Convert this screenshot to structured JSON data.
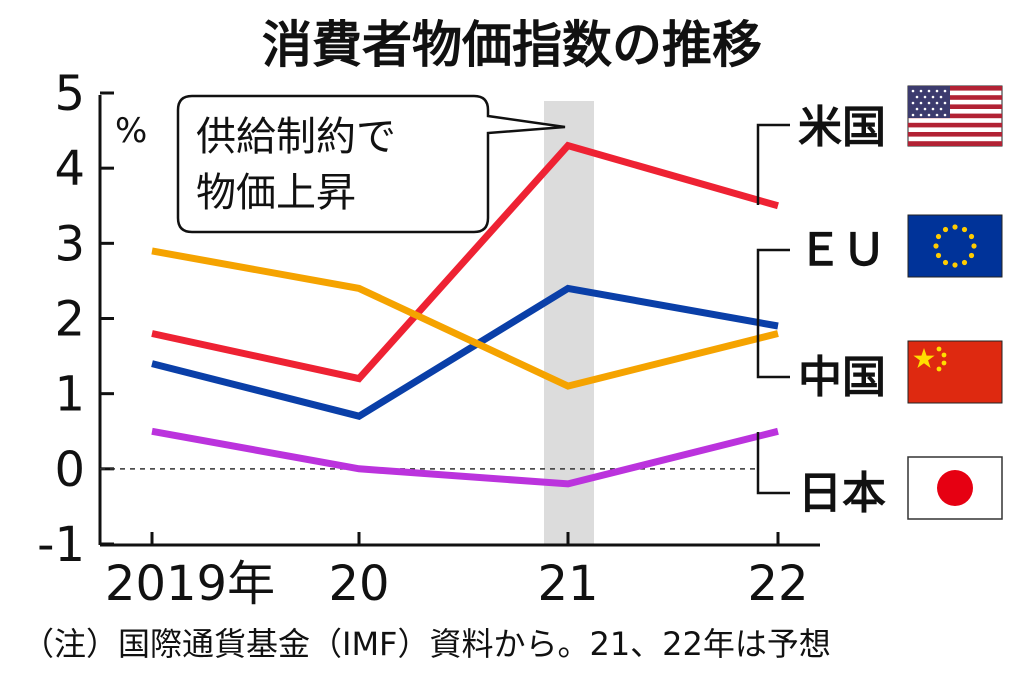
{
  "chart_data": {
    "type": "line",
    "title": "消費者物価指数の推移",
    "unit": "%",
    "x": [
      "2019年",
      "20",
      "21",
      "22"
    ],
    "ylim": [
      -1,
      5
    ],
    "yticks": [
      "-1",
      "0",
      "1",
      "2",
      "3",
      "4",
      "5"
    ],
    "series": [
      {
        "name": "米国",
        "color": "#ee2233",
        "values": [
          1.8,
          1.2,
          4.3,
          3.5
        ]
      },
      {
        "name": "ＥＵ",
        "color": "#0a3fa8",
        "values": [
          1.4,
          0.7,
          2.4,
          1.9
        ]
      },
      {
        "name": "中国",
        "color": "#f5a300",
        "values": [
          2.9,
          2.4,
          1.1,
          1.8
        ]
      },
      {
        "name": "日本",
        "color": "#bb33dd",
        "values": [
          0.5,
          0.0,
          -0.2,
          0.5
        ]
      }
    ],
    "highlight_category": "21",
    "annotation": "供給制約で\n物価上昇",
    "note": "（注）国際通貨基金（IMF）資料から。21、22年は予想"
  },
  "flags": {
    "us": "us-flag-icon",
    "eu": "eu-flag-icon",
    "cn": "china-flag-icon",
    "jp": "japan-flag-icon"
  }
}
